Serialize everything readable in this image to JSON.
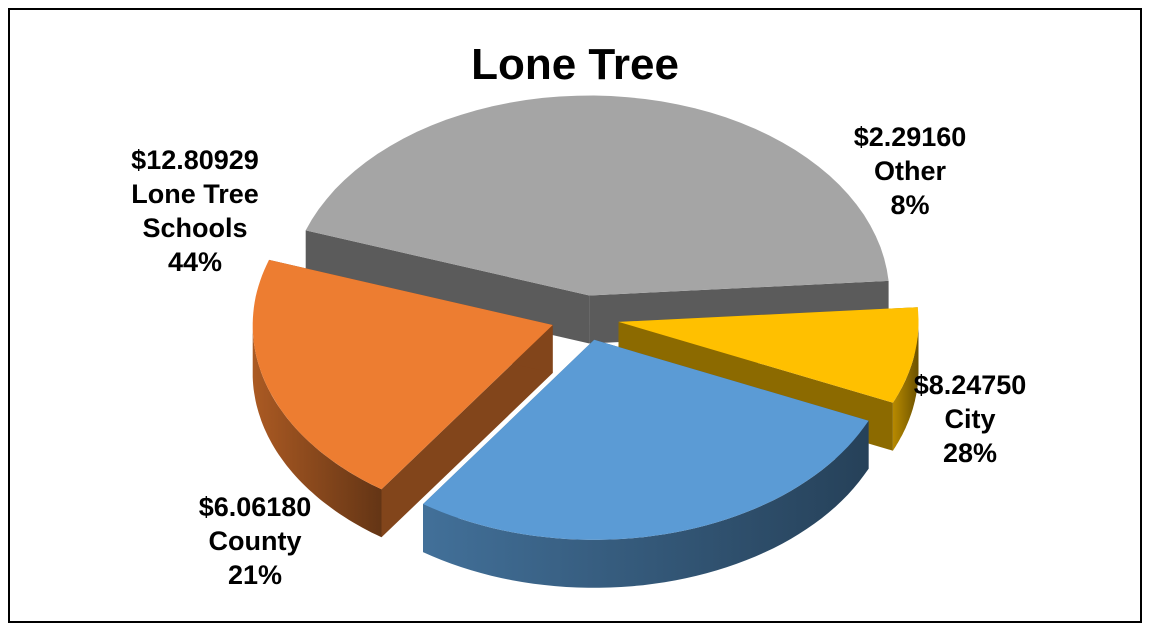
{
  "chart_data": {
    "type": "pie",
    "title": "Lone Tree",
    "slices": [
      {
        "name": "Lone Tree Schools",
        "name_lines": [
          "Lone Tree",
          "Schools"
        ],
        "value": "$12.80929",
        "value_num": 12.80929,
        "percent": "44%",
        "color": "#a5a5a5"
      },
      {
        "name": "Other",
        "name_lines": [
          "Other"
        ],
        "value": "$2.29160",
        "value_num": 2.2916,
        "percent": "8%",
        "color": "#ffc000"
      },
      {
        "name": "City",
        "name_lines": [
          "City"
        ],
        "value": "$8.24750",
        "value_num": 8.2475,
        "percent": "28%",
        "color": "#5b9bd5"
      },
      {
        "name": "County",
        "name_lines": [
          "County"
        ],
        "value": "$6.06180",
        "value_num": 6.0618,
        "percent": "21%",
        "color": "#ed7d31"
      }
    ],
    "style": "3d-exploded",
    "legend": "none"
  }
}
